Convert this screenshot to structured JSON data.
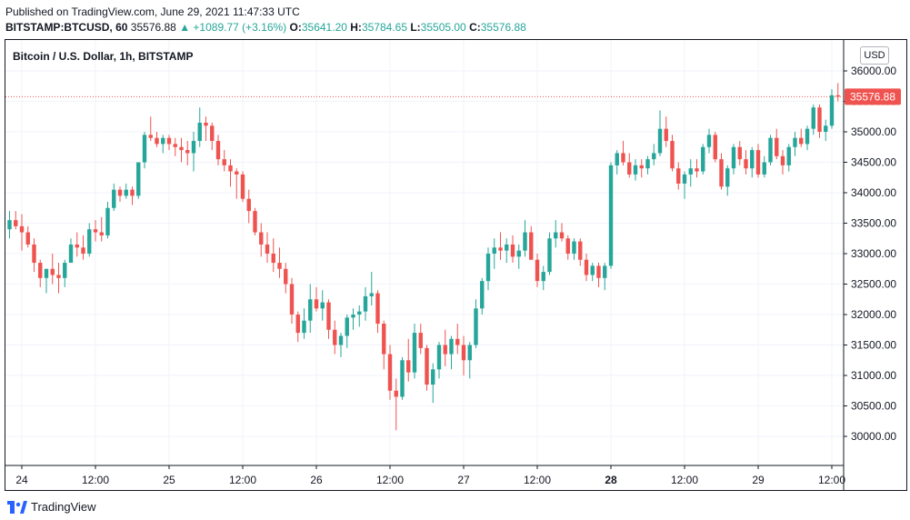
{
  "header": {
    "published": "Published on TradingView.com, June 29, 2021 11:47:33 UTC",
    "symbol": "BITSTAMP:BTCUSD, 60",
    "last": "35576.88",
    "change": "▲ +1089.77 (+3.16%)",
    "o_label": "O:",
    "o_value": "35641.20",
    "h_label": "H:",
    "h_value": "35784.65",
    "l_label": "L:",
    "l_value": "35505.00",
    "c_label": "C:",
    "c_value": "35576.88"
  },
  "chart_title": "Bitcoin / U.S. Dollar, 1h, BITSTAMP",
  "currency_button": "USD",
  "footer": {
    "brand": "TradingView"
  },
  "colors": {
    "up": "#26a69a",
    "down": "#ef5350",
    "grid": "#f0f3fa",
    "last_line": "#ef5350"
  },
  "chart_data": {
    "type": "candlestick",
    "title": "Bitcoin / U.S. Dollar, 1h, BITSTAMP",
    "currency": "USD",
    "ylim": [
      29500,
      36200
    ],
    "y_ticks": [
      "30000.00",
      "30500.00",
      "31000.00",
      "31500.00",
      "32000.00",
      "32500.00",
      "33000.00",
      "33500.00",
      "34000.00",
      "34500.00",
      "35000.00",
      "35500.00",
      "36000.00"
    ],
    "x_ticks": [
      {
        "label": "24",
        "hour": 0,
        "bold": false
      },
      {
        "label": "12:00",
        "hour": 12,
        "bold": false
      },
      {
        "label": "25",
        "hour": 24,
        "bold": false
      },
      {
        "label": "12:00",
        "hour": 36,
        "bold": false
      },
      {
        "label": "26",
        "hour": 48,
        "bold": false
      },
      {
        "label": "12:00",
        "hour": 60,
        "bold": false
      },
      {
        "label": "27",
        "hour": 72,
        "bold": false
      },
      {
        "label": "12:00",
        "hour": 84,
        "bold": false
      },
      {
        "label": "28",
        "hour": 96,
        "bold": true
      },
      {
        "label": "12:00",
        "hour": 108,
        "bold": false
      },
      {
        "label": "29",
        "hour": 120,
        "bold": false
      },
      {
        "label": "12:00",
        "hour": 132,
        "bold": false
      }
    ],
    "first_hour": -2,
    "last_price": 35576.88,
    "last_price_label": "35576.88",
    "candles": [
      [
        33400,
        33700,
        33250,
        33550
      ],
      [
        33550,
        33700,
        33400,
        33450
      ],
      [
        33450,
        33650,
        33050,
        33350
      ],
      [
        33350,
        33450,
        33100,
        33150
      ],
      [
        33150,
        33250,
        32700,
        32850
      ],
      [
        32850,
        32900,
        32450,
        32600
      ],
      [
        32600,
        32750,
        32350,
        32750
      ],
      [
        32750,
        33000,
        32500,
        32650
      ],
      [
        32650,
        32850,
        32350,
        32600
      ],
      [
        32600,
        32900,
        32450,
        32850
      ],
      [
        32850,
        33250,
        32850,
        33150
      ],
      [
        33150,
        33350,
        32950,
        33100
      ],
      [
        33100,
        33300,
        32900,
        33000
      ],
      [
        33000,
        33500,
        32950,
        33400
      ],
      [
        33400,
        33550,
        33200,
        33350
      ],
      [
        33350,
        33600,
        33200,
        33300
      ],
      [
        33300,
        33850,
        33250,
        33750
      ],
      [
        33750,
        34150,
        33700,
        34050
      ],
      [
        34050,
        34100,
        33850,
        33950
      ],
      [
        33950,
        34150,
        33900,
        34050
      ],
      [
        34050,
        34100,
        33800,
        33950
      ],
      [
        33950,
        34500,
        33900,
        34500
      ],
      [
        34500,
        35000,
        34400,
        34950
      ],
      [
        34950,
        35250,
        34850,
        34900
      ],
      [
        34900,
        35000,
        34750,
        34800
      ],
      [
        34800,
        34950,
        34650,
        34900
      ],
      [
        34900,
        34950,
        34700,
        34800
      ],
      [
        34800,
        34900,
        34600,
        34750
      ],
      [
        34750,
        34900,
        34500,
        34700
      ],
      [
        34700,
        34850,
        34450,
        34650
      ],
      [
        34650,
        35000,
        34350,
        34850
      ],
      [
        34850,
        35400,
        34750,
        35150
      ],
      [
        35150,
        35250,
        34850,
        35100
      ],
      [
        35100,
        35150,
        34700,
        34850
      ],
      [
        34850,
        34950,
        34450,
        34550
      ],
      [
        34550,
        34700,
        34350,
        34450
      ],
      [
        34450,
        34550,
        34100,
        34350
      ],
      [
        34350,
        34400,
        33900,
        34300
      ],
      [
        34300,
        34350,
        33850,
        33900
      ],
      [
        33900,
        34050,
        33500,
        33700
      ],
      [
        33700,
        33750,
        33300,
        33350
      ],
      [
        33350,
        33500,
        32950,
        33150
      ],
      [
        33150,
        33350,
        32850,
        33000
      ],
      [
        33000,
        33250,
        32700,
        32850
      ],
      [
        32850,
        33100,
        32600,
        32750
      ],
      [
        32750,
        32850,
        32350,
        32500
      ],
      [
        32500,
        32600,
        31850,
        32000
      ],
      [
        32000,
        32050,
        31550,
        31700
      ],
      [
        31700,
        32100,
        31600,
        31900
      ],
      [
        31900,
        32500,
        31700,
        32250
      ],
      [
        32250,
        32450,
        32050,
        32100
      ],
      [
        32100,
        32400,
        31900,
        32200
      ],
      [
        32200,
        32250,
        31600,
        31750
      ],
      [
        31750,
        31900,
        31350,
        31500
      ],
      [
        31500,
        31700,
        31300,
        31650
      ],
      [
        31650,
        32000,
        31450,
        31950
      ],
      [
        31950,
        32100,
        31750,
        32000
      ],
      [
        32000,
        32150,
        31800,
        32050
      ],
      [
        32050,
        32450,
        31900,
        32300
      ],
      [
        32300,
        32700,
        32150,
        32350
      ],
      [
        32350,
        32400,
        31700,
        31850
      ],
      [
        31850,
        31900,
        31100,
        31350
      ],
      [
        31350,
        31500,
        30600,
        30750
      ],
      [
        30750,
        30950,
        30100,
        30650
      ],
      [
        30650,
        31300,
        30600,
        31250
      ],
      [
        31250,
        31600,
        30900,
        31050
      ],
      [
        31050,
        31850,
        30950,
        31700
      ],
      [
        31700,
        31850,
        31350,
        31450
      ],
      [
        31450,
        31500,
        30750,
        30850
      ],
      [
        30850,
        31200,
        30550,
        31100
      ],
      [
        31100,
        31550,
        30950,
        31500
      ],
      [
        31500,
        31750,
        31150,
        31350
      ],
      [
        31350,
        31650,
        31100,
        31600
      ],
      [
        31600,
        31850,
        31350,
        31500
      ],
      [
        31500,
        31650,
        31000,
        31250
      ],
      [
        31250,
        31550,
        30950,
        31500
      ],
      [
        31500,
        32250,
        31450,
        32100
      ],
      [
        32100,
        32600,
        32000,
        32550
      ],
      [
        32550,
        33100,
        32400,
        33000
      ],
      [
        33000,
        33250,
        32750,
        33100
      ],
      [
        33100,
        33350,
        32900,
        33050
      ],
      [
        33050,
        33250,
        32850,
        33150
      ],
      [
        33150,
        33300,
        32850,
        32950
      ],
      [
        32950,
        33150,
        32750,
        33050
      ],
      [
        33050,
        33550,
        32950,
        33350
      ],
      [
        33350,
        33450,
        32900,
        32900
      ],
      [
        32900,
        33000,
        32450,
        32550
      ],
      [
        32550,
        32800,
        32400,
        32700
      ],
      [
        32700,
        33350,
        32650,
        33250
      ],
      [
        33250,
        33550,
        33100,
        33350
      ],
      [
        33350,
        33500,
        33200,
        33250
      ],
      [
        33250,
        33300,
        32900,
        33000
      ],
      [
        33000,
        33250,
        32900,
        33200
      ],
      [
        33200,
        33250,
        32800,
        32900
      ],
      [
        32900,
        33000,
        32550,
        32650
      ],
      [
        32650,
        32850,
        32550,
        32800
      ],
      [
        32800,
        32850,
        32450,
        32600
      ],
      [
        32600,
        32850,
        32400,
        32800
      ],
      [
        32800,
        34500,
        32750,
        34450
      ],
      [
        34450,
        34700,
        34300,
        34650
      ],
      [
        34650,
        34850,
        34450,
        34500
      ],
      [
        34500,
        34650,
        34250,
        34300
      ],
      [
        34300,
        34550,
        34200,
        34450
      ],
      [
        34450,
        34550,
        34250,
        34400
      ],
      [
        34400,
        34600,
        34300,
        34550
      ],
      [
        34550,
        34800,
        34450,
        34650
      ],
      [
        34650,
        35350,
        34600,
        35050
      ],
      [
        35050,
        35250,
        34750,
        34850
      ],
      [
        34850,
        34950,
        34350,
        34400
      ],
      [
        34400,
        34500,
        34050,
        34150
      ],
      [
        34150,
        34350,
        33900,
        34300
      ],
      [
        34300,
        34550,
        34100,
        34400
      ],
      [
        34400,
        34550,
        34250,
        34350
      ],
      [
        34350,
        34800,
        34300,
        34750
      ],
      [
        34750,
        35050,
        34650,
        34950
      ],
      [
        34950,
        35000,
        34500,
        34550
      ],
      [
        34550,
        34650,
        34050,
        34100
      ],
      [
        34100,
        34450,
        33950,
        34400
      ],
      [
        34400,
        34800,
        34300,
        34750
      ],
      [
        34750,
        34850,
        34450,
        34550
      ],
      [
        34550,
        34700,
        34300,
        34400
      ],
      [
        34400,
        34750,
        34250,
        34700
      ],
      [
        34700,
        34800,
        34250,
        34300
      ],
      [
        34300,
        34600,
        34250,
        34500
      ],
      [
        34500,
        34950,
        34450,
        34900
      ],
      [
        34900,
        35050,
        34550,
        34600
      ],
      [
        34600,
        34700,
        34300,
        34450
      ],
      [
        34450,
        34800,
        34350,
        34750
      ],
      [
        34750,
        35000,
        34600,
        34900
      ],
      [
        34900,
        35050,
        34750,
        34800
      ],
      [
        34800,
        35100,
        34700,
        35050
      ],
      [
        35050,
        35450,
        34950,
        35400
      ],
      [
        35400,
        35450,
        34900,
        35000
      ],
      [
        35000,
        35200,
        34850,
        35100
      ],
      [
        35100,
        35700,
        35050,
        35600
      ],
      [
        35600,
        35800,
        35500,
        35577
      ]
    ]
  }
}
